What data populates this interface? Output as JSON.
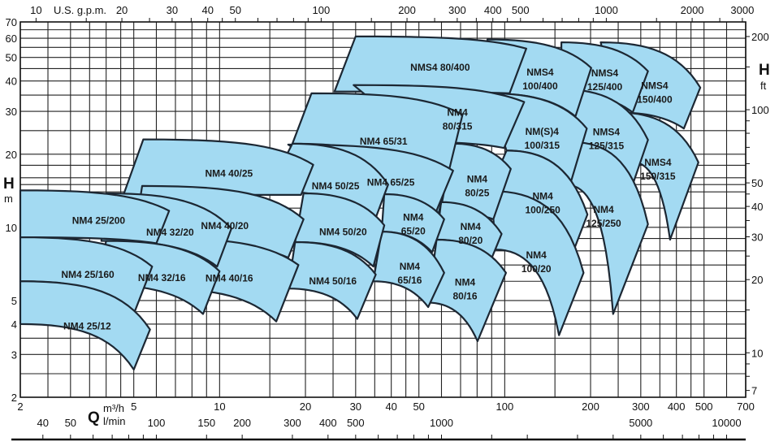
{
  "chart_data": {
    "type": "area",
    "x_scale": "log",
    "y_scale": "log",
    "xlim": [
      2,
      700
    ],
    "ylim": [
      2,
      70
    ],
    "grid": true,
    "x_axis": {
      "symbol": "Q",
      "unit": "m³/h",
      "ticks": [
        2,
        5,
        10,
        20,
        30,
        40,
        50,
        100,
        200,
        300,
        400,
        500,
        700
      ]
    },
    "x_axis_lmin": {
      "unit": "l/min",
      "ticks": [
        40,
        50,
        100,
        150,
        200,
        300,
        400,
        500,
        1000,
        5000,
        10000
      ]
    },
    "x_axis_gpm": {
      "unit": "U.S. g.p.m.",
      "ticks": [
        10,
        20,
        30,
        40,
        50,
        100,
        200,
        300,
        400,
        500,
        1000,
        2000,
        3000
      ]
    },
    "y_axis": {
      "symbol": "H",
      "unit": "m",
      "ticks": [
        2,
        3,
        4,
        5,
        10,
        20,
        30,
        40,
        50,
        60,
        70
      ]
    },
    "y_axis_ft": {
      "symbol": "H",
      "unit": "ft",
      "ticks": [
        7,
        10,
        20,
        30,
        40,
        50,
        100,
        200
      ]
    },
    "fill_color": "#a3daf2",
    "outline_color": "#1c2733",
    "series": [
      {
        "name": "NMS4 150/400",
        "label": [
          "NMS4",
          "150/400"
        ],
        "corners": [
          [
            217,
            57.7
          ],
          [
            485,
            37.6
          ],
          [
            425,
            25.5
          ],
          [
            248,
            29.7
          ]
        ]
      },
      {
        "name": "NMS4 150/315",
        "label": [
          "NMS4",
          "150/315"
        ],
        "corners": [
          [
            248,
            29.7
          ],
          [
            478,
            18.5
          ],
          [
            380,
            8.9
          ],
          [
            284,
            18.5
          ]
        ]
      },
      {
        "name": "NMS4 125/400",
        "label": [
          "NMS4",
          "125/400"
        ],
        "corners": [
          [
            158,
            57.7
          ],
          [
            318,
            43.9
          ],
          [
            281,
            29.7
          ],
          [
            158,
            35.6
          ]
        ]
      },
      {
        "name": "NMS4 125/315",
        "label": [
          "NMS4",
          "125/315"
        ],
        "corners": [
          [
            158,
            37.0
          ],
          [
            318,
            22.9
          ],
          [
            281,
            15.0
          ],
          [
            167,
            22.4
          ]
        ]
      },
      {
        "name": "NM4 125/250",
        "label": [
          "NM4",
          "125/250"
        ],
        "corners": [
          [
            173.5,
            22.4
          ],
          [
            318,
            10.3
          ],
          [
            240,
            4.4
          ],
          [
            167,
            14.9
          ]
        ]
      },
      {
        "name": "NMS4 100/400",
        "label": [
          "NMS4",
          "100/400"
        ],
        "corners": [
          [
            86.9,
            59.3
          ],
          [
            201,
            45.3
          ],
          [
            177,
            28.6
          ],
          [
            86.9,
            35.6
          ]
        ]
      },
      {
        "name": "NM(S)4 100/315",
        "label": [
          "NM(S)4",
          "100/315"
        ],
        "corners": [
          [
            86.9,
            35.6
          ],
          [
            194,
            25.5
          ],
          [
            171,
            15.5
          ],
          [
            101.5,
            20.7
          ]
        ]
      },
      {
        "name": "NM4 100/250",
        "label": [
          "NM4",
          "100/250"
        ],
        "corners": [
          [
            101.5,
            20.7
          ],
          [
            195,
            11.3
          ],
          [
            173.5,
            7.9
          ],
          [
            86.9,
            13.6
          ]
        ]
      },
      {
        "name": "NM4 100/20",
        "label": [
          "NM4",
          "100/20"
        ],
        "corners": [
          [
            89.7,
            14.1
          ],
          [
            189,
            6.5
          ],
          [
            155,
            3.6
          ],
          [
            93.0,
            8.1
          ]
        ]
      },
      {
        "name": "NMS4 80/400",
        "label": [
          "NMS4 80/400"
        ],
        "corners": [
          [
            30.0,
            61
          ],
          [
            119,
            54.4
          ],
          [
            104,
            35.6
          ],
          [
            25.3,
            36.2
          ]
        ]
      },
      {
        "name": "NM4 80/315",
        "label": [
          "NM4",
          "80/315"
        ],
        "corners": [
          [
            29.5,
            38.5
          ],
          [
            117,
            32.8
          ],
          [
            99.5,
            21.2
          ],
          [
            51.5,
            22.4
          ]
        ]
      },
      {
        "name": "NM4 80/25",
        "label": [
          "NM4",
          "80/25"
        ],
        "corners": [
          [
            65.9,
            22.1
          ],
          [
            105,
            17.4
          ],
          [
            91.2,
            10.8
          ],
          [
            59.4,
            11.6
          ]
        ]
      },
      {
        "name": "NM4 80/20",
        "label": [
          "NM4",
          "80/20"
        ],
        "corners": [
          [
            59.8,
            12.7
          ],
          [
            97.5,
            9.4
          ],
          [
            89.7,
            7.4
          ],
          [
            57.7,
            8.9
          ]
        ]
      },
      {
        "name": "NM4 80/16",
        "label": [
          "NM4",
          "80/16"
        ],
        "corners": [
          [
            57.7,
            8.9
          ],
          [
            101,
            6.5
          ],
          [
            80.3,
            3.4
          ],
          [
            53.9,
            4.9
          ]
        ]
      },
      {
        "name": "NM4 65/31",
        "label": [
          "NM4 65/31"
        ],
        "corners": [
          [
            21.0,
            35.6
          ],
          [
            71.1,
            29.1
          ],
          [
            58.5,
            11.3
          ],
          [
            18.0,
            22.1
          ]
        ]
      },
      {
        "name": "NM4 65/25",
        "label": [
          "NM4 65/25"
        ],
        "corners": [
          [
            17.4,
            21.9
          ],
          [
            65.9,
            17.1
          ],
          [
            56.0,
            10.8
          ],
          [
            32.5,
            13.6
          ]
        ]
      },
      {
        "name": "NM4 65/20",
        "label": [
          "NM4",
          "65/20"
        ],
        "corners": [
          [
            37.8,
            13.7
          ],
          [
            61.3,
            10.8
          ],
          [
            55.6,
            7.9
          ],
          [
            37.0,
            9.6
          ]
        ]
      },
      {
        "name": "NM4 65/16",
        "label": [
          "NM4",
          "65/16"
        ],
        "corners": [
          [
            37.0,
            9.6
          ],
          [
            61.3,
            6.5
          ],
          [
            53.9,
            4.7
          ],
          [
            34.6,
            6.0
          ]
        ]
      },
      {
        "name": "NM4 50/25",
        "label": [
          "NM4 50/25"
        ],
        "corners": [
          [
            18.0,
            22.1
          ],
          [
            39.0,
            15.0
          ],
          [
            34.6,
            10.3
          ],
          [
            14.8,
            14.1
          ]
        ]
      },
      {
        "name": "NM4 50/20",
        "label": [
          "NM4 50/20"
        ],
        "corners": [
          [
            19.7,
            13.8
          ],
          [
            37.8,
            10.2
          ],
          [
            34.6,
            6.9
          ],
          [
            18.4,
            8.7
          ]
        ]
      },
      {
        "name": "NM4 50/16",
        "label": [
          "NM4 50/16"
        ],
        "corners": [
          [
            18.4,
            8.7
          ],
          [
            35.3,
            6.4
          ],
          [
            30.4,
            4.2
          ],
          [
            17.4,
            5.6
          ]
        ]
      },
      {
        "name": "NM4 40/25",
        "label": [
          "NM4 40/25"
        ],
        "corners": [
          [
            5.4,
            23.0
          ],
          [
            21.3,
            18.1
          ],
          [
            19.3,
            13.6
          ],
          [
            4.6,
            13.6
          ]
        ]
      },
      {
        "name": "NM4 40/20",
        "label": [
          "NM4 40/20"
        ],
        "corners": [
          [
            5.35,
            14.8
          ],
          [
            19.7,
            10.8
          ],
          [
            17.4,
            7.5
          ],
          [
            5.0,
            8.9
          ]
        ]
      },
      {
        "name": "NM4 40/16",
        "label": [
          "NM4 40/16"
        ],
        "corners": [
          [
            6.3,
            9.0
          ],
          [
            18.9,
            7.0
          ],
          [
            15.8,
            4.1
          ],
          [
            5.9,
            5.6
          ]
        ]
      },
      {
        "name": "NM4 32/20",
        "label": [
          "NM4 32/20"
        ],
        "corners": [
          [
            4.0,
            13.8
          ],
          [
            11.0,
            9.9
          ],
          [
            9.8,
            6.9
          ],
          [
            3.85,
            8.8
          ]
        ]
      },
      {
        "name": "NM4 32/16",
        "label": [
          "NM4 32/16"
        ],
        "corners": [
          [
            4.0,
            8.8
          ],
          [
            10.0,
            6.6
          ],
          [
            8.75,
            4.4
          ],
          [
            3.7,
            5.8
          ]
        ]
      },
      {
        "name": "NM4 25/200",
        "label": [
          "NM4 25/200"
        ],
        "corners": [
          [
            2,
            14.2
          ],
          [
            6.65,
            11.7
          ],
          [
            6.0,
            8.6
          ],
          [
            2,
            9.1
          ]
        ]
      },
      {
        "name": "NM4 25/160",
        "label": [
          "NM4 25/160"
        ],
        "corners": [
          [
            2,
            9.1
          ],
          [
            5.8,
            6.9
          ],
          [
            5.0,
            4.4
          ],
          [
            2,
            6.0
          ]
        ]
      },
      {
        "name": "NM4 25/12",
        "label": [
          "NM4 25/12"
        ],
        "corners": [
          [
            2,
            6.0
          ],
          [
            5.7,
            3.8
          ],
          [
            5.0,
            2.6
          ],
          [
            2,
            4.0
          ]
        ]
      }
    ]
  }
}
